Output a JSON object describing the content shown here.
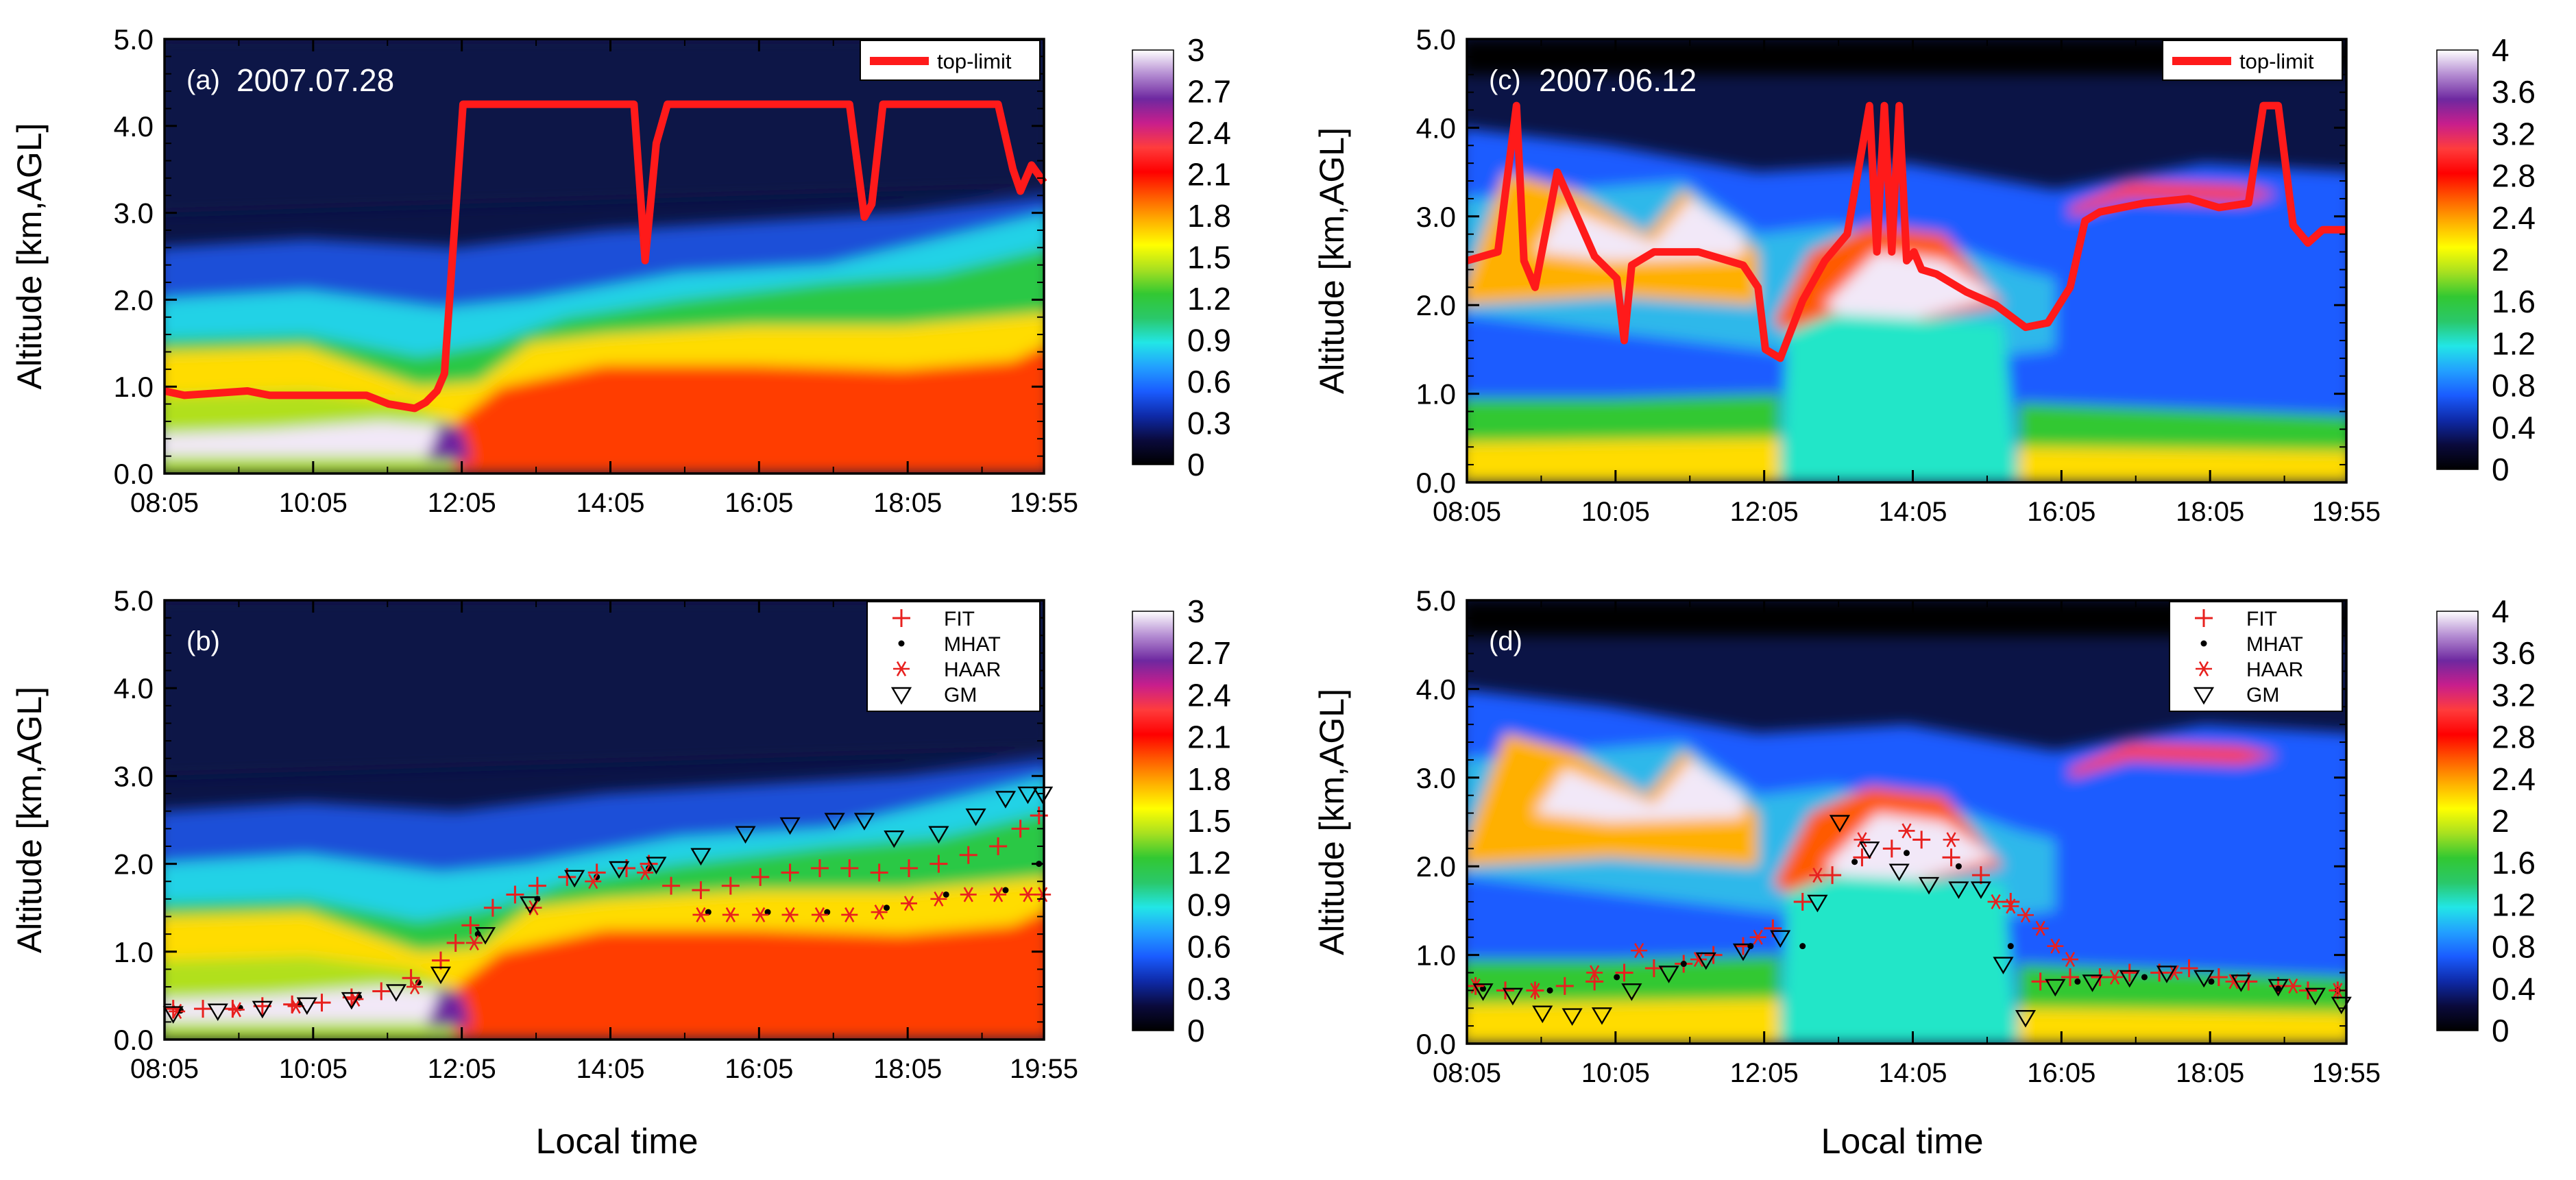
{
  "figure": {
    "x_axis_title": "Local time",
    "y_axis_title": "Altitude [km,AGL]"
  },
  "colors": {
    "top_limit_line": "#ff1a1a",
    "fit_marker": "#e8201e",
    "mhat_marker": "#000000",
    "haar_marker": "#e8201e",
    "gm_marker": "#000000",
    "colormap": [
      "#000000",
      "#0a0a3c",
      "#0e2aa8",
      "#1a5cff",
      "#22a0ff",
      "#22e6e6",
      "#2ac86a",
      "#32c832",
      "#a8e020",
      "#ffff00",
      "#ffb000",
      "#ff5a00",
      "#ff0000",
      "#ff3c3c",
      "#c81e8c",
      "#6e28a0",
      "#b48cd2",
      "#ffffff"
    ]
  },
  "chart_data": [
    {
      "id": "a",
      "type": "heatmap",
      "panel_label": "(a)",
      "date": "2007.07.28",
      "legend": [
        "top-limit"
      ],
      "legend_position": "top-right",
      "xlabel": "",
      "ylabel": "Altitude [km,AGL]",
      "x_tick_labels": [
        "08:05",
        "10:05",
        "12:05",
        "14:05",
        "16:05",
        "18:05",
        "19:55"
      ],
      "x_ticks_hours": [
        8.083,
        10.083,
        12.083,
        14.083,
        16.083,
        18.083,
        19.917
      ],
      "xlim": [
        8.083,
        19.917
      ],
      "y_tick_labels": [
        "0.0",
        "1.0",
        "2.0",
        "3.0",
        "4.0",
        "5.0"
      ],
      "ylim": [
        0,
        5
      ],
      "colorbar": {
        "min": 0,
        "max": 3,
        "tick_labels": [
          "0",
          "0.3",
          "0.6",
          "0.9",
          "1.2",
          "1.5",
          "1.8",
          "2.1",
          "2.4",
          "2.7",
          "3"
        ]
      },
      "series": [
        {
          "name": "top-limit",
          "x": [
            8.083,
            8.35,
            9.2,
            9.5,
            10.8,
            11.1,
            11.45,
            11.6,
            11.75,
            11.85,
            12.1,
            14.4,
            14.55,
            14.7,
            14.85,
            17.3,
            17.5,
            17.6,
            17.75,
            17.85,
            19.3,
            19.5,
            19.6,
            19.75,
            19.917
          ],
          "y": [
            0.95,
            0.9,
            0.95,
            0.9,
            0.9,
            0.8,
            0.75,
            0.82,
            0.95,
            1.15,
            4.25,
            4.25,
            2.45,
            3.8,
            4.25,
            4.25,
            2.95,
            3.1,
            4.25,
            4.25,
            4.25,
            3.5,
            3.25,
            3.55,
            3.35
          ]
        }
      ]
    },
    {
      "id": "b",
      "type": "heatmap",
      "panel_label": "(b)",
      "date": "",
      "legend": [
        "FIT",
        "MHAT",
        "HAAR",
        "GM"
      ],
      "legend_position": "top-right",
      "xlabel": "Local time",
      "ylabel": "Altitude [km,AGL]",
      "x_tick_labels": [
        "08:05",
        "10:05",
        "12:05",
        "14:05",
        "16:05",
        "18:05",
        "19:55"
      ],
      "x_ticks_hours": [
        8.083,
        10.083,
        12.083,
        14.083,
        16.083,
        18.083,
        19.917
      ],
      "xlim": [
        8.083,
        19.917
      ],
      "y_tick_labels": [
        "0.0",
        "1.0",
        "2.0",
        "3.0",
        "4.0",
        "5.0"
      ],
      "ylim": [
        0,
        5
      ],
      "colorbar": {
        "min": 0,
        "max": 3,
        "tick_labels": [
          "0",
          "0.3",
          "0.6",
          "0.9",
          "1.2",
          "1.5",
          "1.8",
          "2.1",
          "2.4",
          "2.7",
          "3"
        ]
      },
      "series": [
        {
          "name": "FIT",
          "x": [
            8.2,
            8.6,
            9.0,
            9.4,
            9.8,
            10.2,
            10.6,
            11.0,
            11.4,
            11.8,
            12.0,
            12.2,
            12.5,
            12.8,
            13.1,
            13.5,
            13.9,
            14.3,
            14.6,
            14.9,
            15.3,
            15.7,
            16.1,
            16.5,
            16.9,
            17.3,
            17.7,
            18.1,
            18.5,
            18.9,
            19.3,
            19.6,
            19.85
          ],
          "y": [
            0.35,
            0.35,
            0.35,
            0.38,
            0.4,
            0.42,
            0.48,
            0.55,
            0.7,
            0.9,
            1.1,
            1.3,
            1.5,
            1.65,
            1.75,
            1.85,
            1.9,
            1.95,
            2.0,
            1.75,
            1.7,
            1.75,
            1.85,
            1.9,
            1.95,
            1.95,
            1.9,
            1.95,
            2.0,
            2.1,
            2.2,
            2.4,
            2.55
          ]
        },
        {
          "name": "MHAT",
          "x": [
            8.3,
            9.1,
            9.9,
            10.7,
            11.5,
            12.3,
            13.1,
            13.9,
            14.6,
            15.4,
            16.2,
            17.0,
            17.8,
            18.6,
            19.4,
            19.85
          ],
          "y": [
            0.33,
            0.36,
            0.4,
            0.48,
            0.65,
            1.2,
            1.6,
            1.85,
            1.95,
            1.45,
            1.45,
            1.45,
            1.5,
            1.65,
            1.7,
            2.0
          ]
        },
        {
          "name": "HAAR",
          "x": [
            8.25,
            9.05,
            9.85,
            10.65,
            11.45,
            12.25,
            13.05,
            13.85,
            14.55,
            15.3,
            15.7,
            16.1,
            16.5,
            16.9,
            17.3,
            17.7,
            18.1,
            18.5,
            18.9,
            19.3,
            19.7,
            19.9
          ],
          "y": [
            0.32,
            0.34,
            0.38,
            0.46,
            0.6,
            1.1,
            1.5,
            1.8,
            1.9,
            1.42,
            1.42,
            1.42,
            1.42,
            1.42,
            1.42,
            1.45,
            1.55,
            1.6,
            1.65,
            1.65,
            1.65,
            1.65
          ]
        },
        {
          "name": "GM",
          "x": [
            8.2,
            8.8,
            9.4,
            10.0,
            10.6,
            11.2,
            11.8,
            12.4,
            13.0,
            13.6,
            14.2,
            14.7,
            15.3,
            15.9,
            16.5,
            17.1,
            17.5,
            17.9,
            18.5,
            19.0,
            19.4,
            19.7,
            19.9
          ],
          "y": [
            0.3,
            0.33,
            0.36,
            0.4,
            0.46,
            0.55,
            0.75,
            1.2,
            1.55,
            1.85,
            1.95,
            2.0,
            2.1,
            2.35,
            2.45,
            2.5,
            2.5,
            2.3,
            2.35,
            2.55,
            2.75,
            2.8,
            2.8
          ]
        }
      ]
    },
    {
      "id": "c",
      "type": "heatmap",
      "panel_label": "(c)",
      "date": "2007.06.12",
      "legend": [
        "top-limit"
      ],
      "legend_position": "top-right",
      "xlabel": "",
      "ylabel": "Altitude [km,AGL]",
      "x_tick_labels": [
        "08:05",
        "10:05",
        "12:05",
        "14:05",
        "16:05",
        "18:05",
        "19:55"
      ],
      "x_ticks_hours": [
        8.083,
        10.083,
        12.083,
        14.083,
        16.083,
        18.083,
        19.917
      ],
      "xlim": [
        8.083,
        19.917
      ],
      "y_tick_labels": [
        "0.0",
        "1.0",
        "2.0",
        "3.0",
        "4.0",
        "5.0"
      ],
      "ylim": [
        0,
        5
      ],
      "colorbar": {
        "min": 0,
        "max": 4,
        "tick_labels": [
          "0",
          "0.4",
          "0.8",
          "1.2",
          "1.6",
          "2",
          "2.4",
          "2.8",
          "3.2",
          "3.6",
          "4"
        ]
      },
      "series": [
        {
          "name": "top-limit",
          "x": [
            8.083,
            8.5,
            8.75,
            8.85,
            9.0,
            9.3,
            9.8,
            10.1,
            10.2,
            10.3,
            10.6,
            11.2,
            11.8,
            12.0,
            12.1,
            12.3,
            12.6,
            12.9,
            13.2,
            13.5,
            13.6,
            13.7,
            13.8,
            13.9,
            14.0,
            14.1,
            14.2,
            14.4,
            14.8,
            15.2,
            15.6,
            15.9,
            16.2,
            16.4,
            16.6,
            17.2,
            17.8,
            18.2,
            18.6,
            18.8,
            19.0,
            19.2,
            19.4,
            19.6,
            19.917
          ],
          "y": [
            2.5,
            2.6,
            4.25,
            2.5,
            2.2,
            3.5,
            2.55,
            2.3,
            1.6,
            2.45,
            2.6,
            2.6,
            2.45,
            2.2,
            1.5,
            1.4,
            2.05,
            2.5,
            2.8,
            4.25,
            2.6,
            4.25,
            2.6,
            4.25,
            2.5,
            2.6,
            2.4,
            2.35,
            2.15,
            2.0,
            1.75,
            1.8,
            2.2,
            2.95,
            3.05,
            3.15,
            3.2,
            3.1,
            3.15,
            4.25,
            4.25,
            2.9,
            2.7,
            2.85,
            2.85
          ]
        }
      ]
    },
    {
      "id": "d",
      "type": "heatmap",
      "panel_label": "(d)",
      "date": "",
      "legend": [
        "FIT",
        "MHAT",
        "HAAR",
        "GM"
      ],
      "legend_position": "top-right",
      "xlabel": "Local time",
      "ylabel": "Altitude [km,AGL]",
      "x_tick_labels": [
        "08:05",
        "10:05",
        "12:05",
        "14:05",
        "16:05",
        "18:05",
        "19:55"
      ],
      "x_ticks_hours": [
        8.083,
        10.083,
        12.083,
        14.083,
        16.083,
        18.083,
        19.917
      ],
      "xlim": [
        8.083,
        19.917
      ],
      "y_tick_labels": [
        "0.0",
        "1.0",
        "2.0",
        "3.0",
        "4.0",
        "5.0"
      ],
      "ylim": [
        0,
        5
      ],
      "colorbar": {
        "min": 0,
        "max": 4,
        "tick_labels": [
          "0",
          "0.4",
          "0.8",
          "1.2",
          "1.6",
          "2",
          "2.4",
          "2.8",
          "3.2",
          "3.6",
          "4"
        ]
      },
      "series": [
        {
          "name": "FIT",
          "x": [
            8.2,
            8.6,
            9.0,
            9.4,
            9.8,
            10.2,
            10.6,
            11.0,
            11.4,
            11.8,
            12.2,
            12.6,
            13.0,
            13.4,
            13.8,
            14.2,
            14.6,
            15.0,
            15.4,
            15.8,
            16.2,
            16.6,
            17.0,
            17.4,
            17.8,
            18.2,
            18.6,
            19.0,
            19.4,
            19.8
          ],
          "y": [
            0.65,
            0.6,
            0.6,
            0.65,
            0.7,
            0.8,
            0.85,
            0.9,
            1.0,
            1.1,
            1.3,
            1.6,
            1.9,
            2.1,
            2.2,
            2.3,
            2.1,
            1.9,
            1.6,
            0.7,
            0.75,
            0.75,
            0.8,
            0.8,
            0.85,
            0.75,
            0.7,
            0.65,
            0.6,
            0.6
          ]
        },
        {
          "name": "MHAT",
          "x": [
            8.3,
            9.2,
            10.1,
            11.0,
            11.9,
            12.6,
            13.3,
            14.0,
            14.7,
            15.4,
            16.3,
            17.2,
            18.1,
            19.0,
            19.8
          ],
          "y": [
            0.62,
            0.6,
            0.75,
            0.9,
            1.1,
            1.1,
            2.05,
            2.15,
            2.0,
            1.1,
            0.7,
            0.75,
            0.7,
            0.62,
            0.6
          ]
        },
        {
          "name": "HAAR",
          "x": [
            8.2,
            9.0,
            9.8,
            10.4,
            11.2,
            12.0,
            12.8,
            13.4,
            14.0,
            14.6,
            15.2,
            15.4,
            15.6,
            15.8,
            16.0,
            16.2,
            16.8,
            17.6,
            18.4,
            19.2,
            19.8
          ],
          "y": [
            0.65,
            0.6,
            0.8,
            1.05,
            0.95,
            1.2,
            1.9,
            2.3,
            2.4,
            2.3,
            1.6,
            1.55,
            1.45,
            1.3,
            1.1,
            0.95,
            0.75,
            0.8,
            0.7,
            0.65,
            0.6
          ]
        },
        {
          "name": "GM",
          "x": [
            8.3,
            8.7,
            9.1,
            9.5,
            9.9,
            10.3,
            10.8,
            11.3,
            11.8,
            12.3,
            12.8,
            13.1,
            13.5,
            13.9,
            14.3,
            14.7,
            15.0,
            15.3,
            15.6,
            16.0,
            16.5,
            17.0,
            17.5,
            18.0,
            18.5,
            19.0,
            19.5,
            19.85
          ],
          "y": [
            0.6,
            0.55,
            0.35,
            0.32,
            0.33,
            0.6,
            0.8,
            0.95,
            1.05,
            1.2,
            1.6,
            2.5,
            2.2,
            1.95,
            1.8,
            1.75,
            1.75,
            0.9,
            0.3,
            0.65,
            0.7,
            0.75,
            0.8,
            0.75,
            0.7,
            0.65,
            0.55,
            0.45
          ]
        }
      ]
    }
  ]
}
